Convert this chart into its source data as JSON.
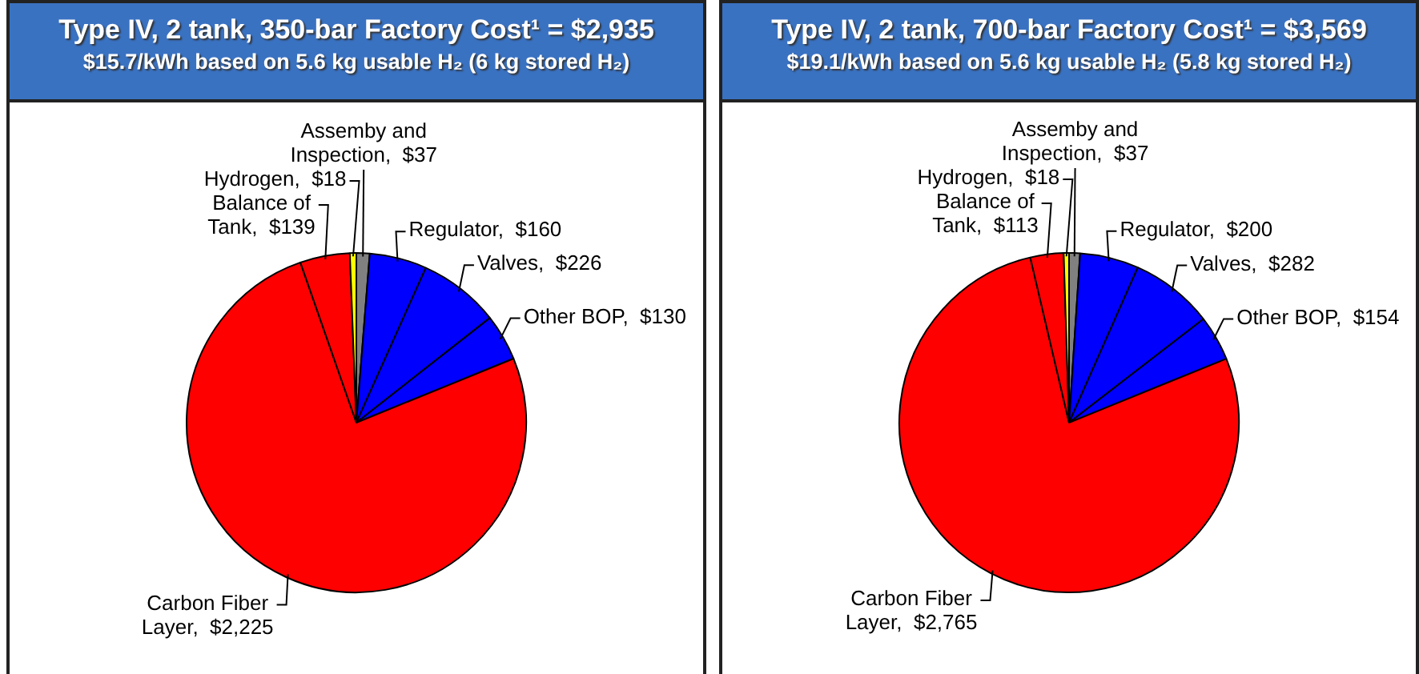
{
  "chart_data": [
    {
      "type": "pie",
      "title": "Type IV, 2 tank, 350-bar Factory Cost¹ = $2,935",
      "subtitle": "$15.7/kWh based on 5.6 kg usable H₂ (6 kg stored H₂)",
      "categories": [
        "Assemby and Inspection",
        "Regulator",
        "Valves",
        "Other BOP",
        "Carbon Fiber Layer",
        "Balance of Tank",
        "Hydrogen"
      ],
      "values": [
        37,
        160,
        226,
        130,
        2225,
        139,
        18
      ],
      "value_labels": [
        "$37",
        "$160",
        "$226",
        "$130",
        "$2,225",
        "$139",
        "$18"
      ],
      "colors": [
        "#808080",
        "#0000ff",
        "#0000ff",
        "#0000ff",
        "#ff0000",
        "#ff0000",
        "#ffff00"
      ]
    },
    {
      "type": "pie",
      "title": "Type IV, 2 tank, 700-bar Factory Cost¹ = $3,569",
      "subtitle": "$19.1/kWh based on 5.6 kg usable H₂ (5.8 kg stored H₂)",
      "categories": [
        "Assemby and Inspection",
        "Regulator",
        "Valves",
        "Other BOP",
        "Carbon Fiber Layer",
        "Balance of Tank",
        "Hydrogen"
      ],
      "values": [
        37,
        200,
        282,
        154,
        2765,
        113,
        18
      ],
      "value_labels": [
        "$37",
        "$200",
        "$282",
        "$154",
        "$2,765",
        "$113",
        "$18"
      ],
      "colors": [
        "#808080",
        "#0000ff",
        "#0000ff",
        "#0000ff",
        "#ff0000",
        "#ff0000",
        "#ffff00"
      ]
    }
  ]
}
